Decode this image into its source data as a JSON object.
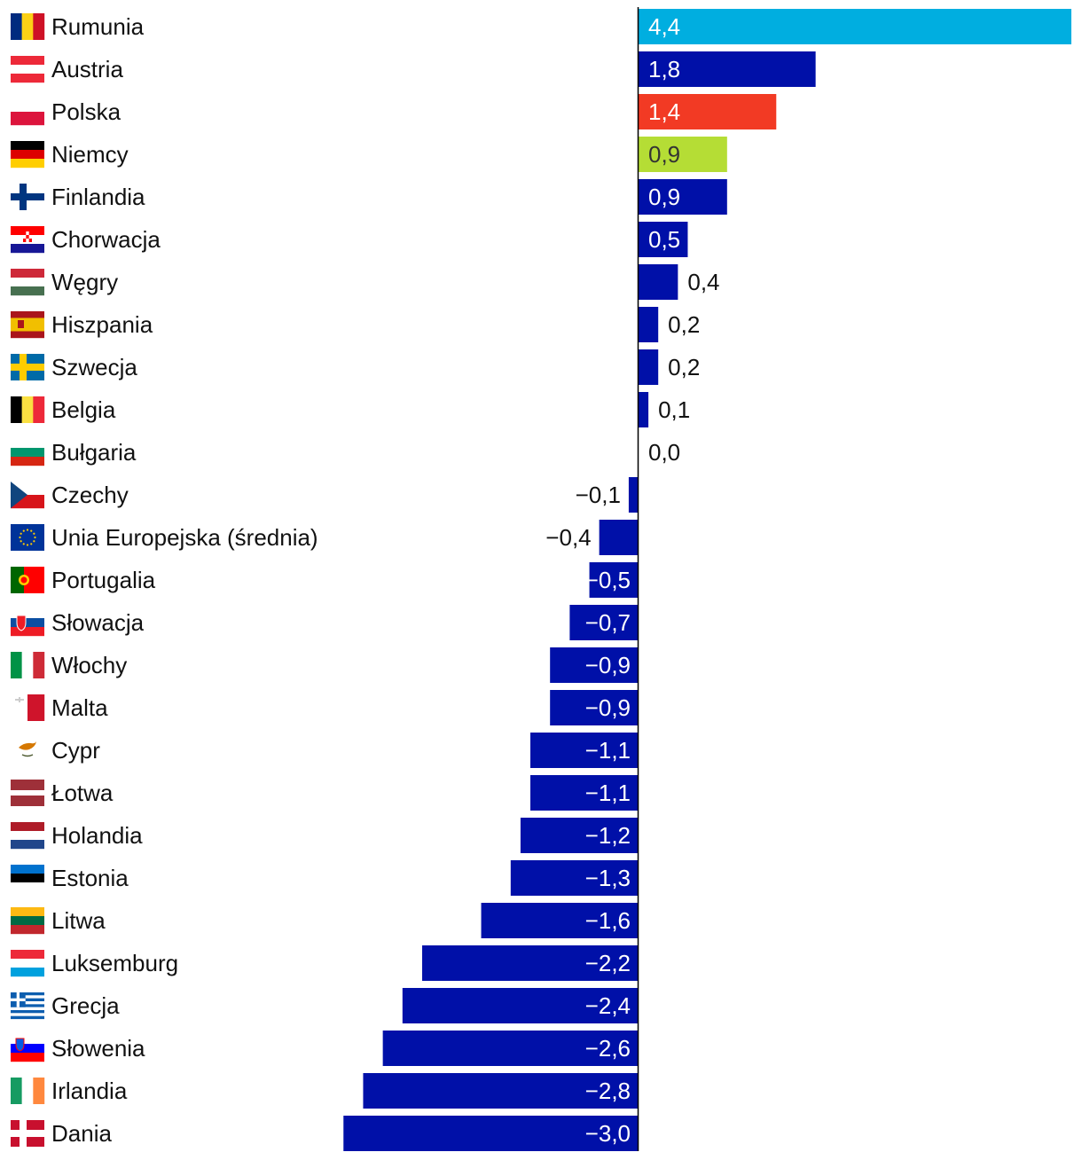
{
  "chart_data": {
    "type": "bar",
    "orientation": "horizontal",
    "title": "",
    "xlabel": "",
    "ylabel": "",
    "xlim": [
      -3.0,
      4.4
    ],
    "grid": false,
    "categories": [
      "Rumunia",
      "Austria",
      "Polska",
      "Niemcy",
      "Finlandia",
      "Chorwacja",
      "Węgry",
      "Hiszpania",
      "Szwecja",
      "Belgia",
      "Bułgaria",
      "Czechy",
      "Unia Europejska (średnia)",
      "Portugalia",
      "Słowacja",
      "Włochy",
      "Malta",
      "Cypr",
      "Łotwa",
      "Holandia",
      "Estonia",
      "Litwa",
      "Luksemburg",
      "Grecja",
      "Słowenia",
      "Irlandia",
      "Dania"
    ],
    "values": [
      4.4,
      1.8,
      1.4,
      0.9,
      0.9,
      0.5,
      0.4,
      0.2,
      0.2,
      0.1,
      0.0,
      -0.1,
      -0.4,
      -0.5,
      -0.7,
      -0.9,
      -0.9,
      -1.1,
      -1.1,
      -1.2,
      -1.3,
      -1.6,
      -2.2,
      -2.4,
      -2.6,
      -2.8,
      -3.0
    ],
    "value_labels": [
      "4,4",
      "1,8",
      "1,4",
      "0,9",
      "0,9",
      "0,5",
      "0,4",
      "0,2",
      "0,2",
      "0,1",
      "0,0",
      "−0,1",
      "−0,4",
      "−0,5",
      "−0,7",
      "−0,9",
      "−0,9",
      "−1,1",
      "−1,1",
      "−1,2",
      "−1,3",
      "−1,6",
      "−2,2",
      "−2,4",
      "−2,6",
      "−2,8",
      "−3,0"
    ],
    "flag_icons": [
      "romania-flag-icon",
      "austria-flag-icon",
      "poland-flag-icon",
      "germany-flag-icon",
      "finland-flag-icon",
      "croatia-flag-icon",
      "hungary-flag-icon",
      "spain-flag-icon",
      "sweden-flag-icon",
      "belgium-flag-icon",
      "bulgaria-flag-icon",
      "czechia-flag-icon",
      "eu-flag-icon",
      "portugal-flag-icon",
      "slovakia-flag-icon",
      "italy-flag-icon",
      "malta-flag-icon",
      "cyprus-flag-icon",
      "latvia-flag-icon",
      "netherlands-flag-icon",
      "estonia-flag-icon",
      "lithuania-flag-icon",
      "luxembourg-flag-icon",
      "greece-flag-icon",
      "slovenia-flag-icon",
      "ireland-flag-icon",
      "denmark-flag-icon"
    ],
    "colors": {
      "default": "#0010a8",
      "Rumunia": "#00aee0",
      "Polska": "#f23a24",
      "Niemcy": "#b5dd35"
    },
    "label_color_dark_on": [
      "Niemcy"
    ]
  }
}
